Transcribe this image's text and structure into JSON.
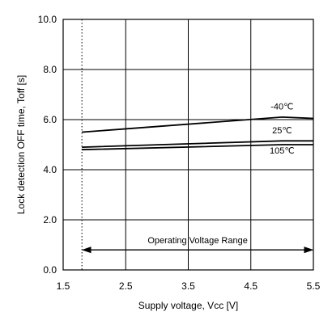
{
  "chart_data": {
    "type": "line",
    "title": "",
    "xlabel": "Supply voltage, Vcc [V]",
    "ylabel": "Lock detection OFF time, Toff [s]",
    "xlim": [
      1.5,
      5.5
    ],
    "ylim": [
      0.0,
      10.0
    ],
    "x_ticks": [
      1.5,
      2.5,
      3.5,
      4.5,
      5.5
    ],
    "x_tick_labels": [
      "1.5",
      "2.5",
      "3.5",
      "4.5",
      "5.5"
    ],
    "y_ticks": [
      0,
      2,
      4,
      6,
      8,
      10
    ],
    "y_tick_labels": [
      "0.0",
      "2.0",
      "4.0",
      "6.0",
      "8.0",
      "10.0"
    ],
    "grid": true,
    "series": [
      {
        "name": "-40℃",
        "x": [
          1.8,
          5.0,
          5.5
        ],
        "y": [
          5.5,
          6.1,
          6.05
        ]
      },
      {
        "name": "25℃",
        "x": [
          1.8,
          5.0,
          5.5
        ],
        "y": [
          4.9,
          5.15,
          5.15
        ]
      },
      {
        "name": "105℃",
        "x": [
          1.8,
          5.0,
          5.5
        ],
        "y": [
          4.8,
          5.0,
          5.0
        ]
      }
    ],
    "series_labels": [
      {
        "series": 0,
        "text": "-40℃",
        "x": 5.0,
        "y": 6.4
      },
      {
        "series": 1,
        "text": "25℃",
        "x": 5.0,
        "y": 5.45
      },
      {
        "series": 2,
        "text": "105℃",
        "x": 5.0,
        "y": 4.65
      }
    ],
    "annotations": [
      {
        "type": "vline",
        "x": 1.8,
        "style": "dotted"
      },
      {
        "type": "range-arrow",
        "x_start": 1.8,
        "x_end": 5.5,
        "y": 0.8,
        "label": "Operating Voltage Range"
      }
    ],
    "line_color": "#000000",
    "grid_color": "#000000"
  }
}
